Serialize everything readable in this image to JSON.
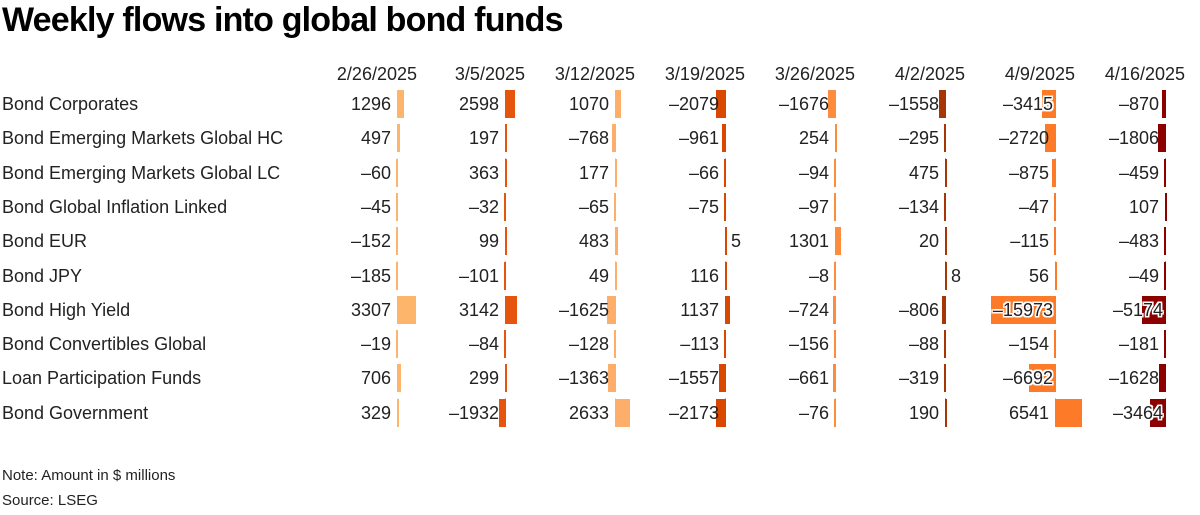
{
  "title": "Weekly flows into global bond funds",
  "note": "Note: Amount in $ millions",
  "source": "Source: LSEG",
  "columns": [
    "2/26/2025",
    "3/5/2025",
    "3/12/2025",
    "3/19/2025",
    "3/26/2025",
    "4/2/2025",
    "4/9/2025",
    "4/16/2025"
  ],
  "column_colors": [
    "#fdb46b",
    "#e6550d",
    "#fdae6b",
    "#d94801",
    "#fd8d3c",
    "#a63603",
    "#fd7b28",
    "#8c0000"
  ],
  "rows": [
    "Bond Corporates",
    "Bond Emerging Markets Global HC",
    "Bond Emerging Markets Global LC",
    "Bond Global Inflation Linked",
    "Bond EUR",
    "Bond JPY",
    "Bond High Yield",
    "Bond Convertibles Global",
    "Loan Participation Funds",
    "Bond Government"
  ],
  "chart_data": {
    "type": "table",
    "title": "Weekly flows into global bond funds",
    "subtitle": "",
    "unit": "$ millions",
    "categories": [
      "2/26/2025",
      "3/5/2025",
      "3/12/2025",
      "3/19/2025",
      "3/26/2025",
      "4/2/2025",
      "4/9/2025",
      "4/16/2025"
    ],
    "series": [
      {
        "name": "Bond Corporates",
        "values": [
          1296,
          2598,
          1070,
          -2079,
          -1676,
          -1558,
          -3415,
          -870
        ]
      },
      {
        "name": "Bond Emerging Markets Global HC",
        "values": [
          497,
          197,
          -768,
          -961,
          254,
          -295,
          -2720,
          -1806
        ]
      },
      {
        "name": "Bond Emerging Markets Global LC",
        "values": [
          -60,
          363,
          177,
          -66,
          -94,
          475,
          -875,
          -459
        ]
      },
      {
        "name": "Bond Global Inflation Linked",
        "values": [
          -45,
          -32,
          -65,
          -75,
          -97,
          -134,
          -47,
          107
        ]
      },
      {
        "name": "Bond EUR",
        "values": [
          -152,
          99,
          483,
          5,
          1301,
          20,
          -115,
          -483
        ]
      },
      {
        "name": "Bond JPY",
        "values": [
          -185,
          -101,
          49,
          116,
          -8,
          8,
          56,
          -49
        ]
      },
      {
        "name": "Bond High Yield",
        "values": [
          3307,
          3142,
          -1625,
          1137,
          -724,
          -806,
          -15973,
          -5174
        ]
      },
      {
        "name": "Bond Convertibles Global",
        "values": [
          -19,
          -84,
          -128,
          -113,
          -156,
          -88,
          -154,
          -181
        ]
      },
      {
        "name": "Loan Participation Funds",
        "values": [
          706,
          299,
          -1363,
          -1557,
          -661,
          -319,
          -6692,
          -1628
        ]
      },
      {
        "name": "Bond Government",
        "values": [
          329,
          -1932,
          2633,
          -2173,
          -76,
          190,
          6541,
          -3464
        ]
      }
    ],
    "note": "Note: Amount in $ millions",
    "source": "Source: LSEG"
  }
}
